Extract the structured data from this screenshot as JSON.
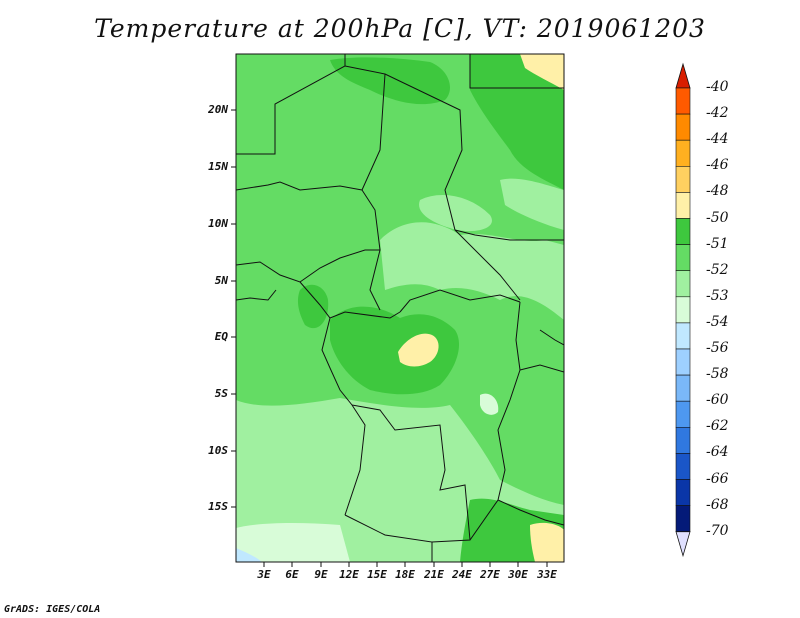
{
  "title": "Temperature at 200hPa [C], VT: 2019061203",
  "footer": "GrADS: IGES/COLA",
  "y_axis_labels": [
    "20N",
    "15N",
    "10N",
    "5N",
    "EQ",
    "5S",
    "10S",
    "15S"
  ],
  "x_axis_labels": [
    "3E",
    "6E",
    "9E",
    "12E",
    "15E",
    "18E",
    "21E",
    "24E",
    "27E",
    "30E",
    "33E"
  ],
  "colorbar": {
    "labels": [
      "-40",
      "-42",
      "-44",
      "-46",
      "-48",
      "-50",
      "-51",
      "-52",
      "-53",
      "-54",
      "-56",
      "-58",
      "-60",
      "-62",
      "-64",
      "-66",
      "-68",
      "-70"
    ],
    "colors": [
      "#ff2a00",
      "#ff5a00",
      "#ff8a00",
      "#ffb020",
      "#ffd060",
      "#fff0a8",
      "#3ec83e",
      "#64dc64",
      "#a0f0a0",
      "#d8fcd8",
      "#c0e8ff",
      "#9ed0ff",
      "#7ab8f8",
      "#4e98f0",
      "#3078e0",
      "#1a56c8",
      "#0a36a8",
      "#041a78"
    ],
    "top_arrow_color": "#d81e00",
    "bottom_arrow_color": "#e0e0ff"
  },
  "field_colors": {
    "c51": "#fff0a8",
    "c52": "#3ec83e",
    "c53": "#64dc64",
    "c54": "#a0f0a0",
    "c56": "#d8fcd8",
    "c58": "#c0e8ff"
  }
}
